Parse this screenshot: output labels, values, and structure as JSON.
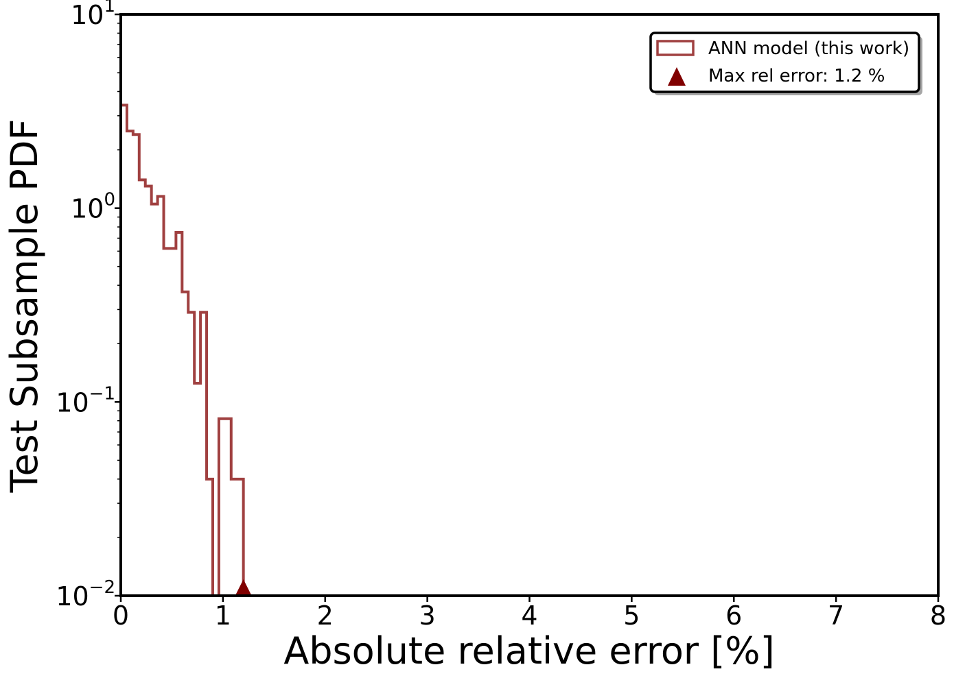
{
  "chart_data": {
    "type": "histogram",
    "xlabel": "Absolute relative error [%]",
    "ylabel": "Test Subsample PDF",
    "xlim": [
      0,
      8
    ],
    "ylim": [
      0.01,
      10
    ],
    "yscale": "log",
    "x_ticks": [
      0,
      1,
      2,
      3,
      4,
      5,
      6,
      7,
      8
    ],
    "x_tick_labels": [
      "0",
      "1",
      "2",
      "3",
      "4",
      "5",
      "6",
      "7",
      "8"
    ],
    "y_ticks": [
      {
        "value": 0.01,
        "base": "10",
        "exp": "−2"
      },
      {
        "value": 0.1,
        "base": "10",
        "exp": "−1"
      },
      {
        "value": 1,
        "base": "10",
        "exp": "0"
      },
      {
        "value": 10,
        "base": "10",
        "exp": "1"
      }
    ],
    "grid": false,
    "legend_position": "top-right",
    "series": [
      {
        "name": "ANN model (this work)",
        "color": "#a04040",
        "style": "step",
        "bin_edges": [
          0,
          0.06,
          0.12,
          0.18,
          0.24,
          0.3,
          0.36,
          0.42,
          0.48,
          0.54,
          0.6,
          0.66,
          0.72,
          0.78,
          0.84,
          0.9,
          0.96,
          1.02,
          1.08,
          1.14,
          1.2
        ],
        "values": [
          3.4,
          2.5,
          2.4,
          1.4,
          1.3,
          1.05,
          1.15,
          0.62,
          0.62,
          0.75,
          0.37,
          0.29,
          0.125,
          0.29,
          0.04,
          0,
          0.082,
          0.082,
          0.04,
          0.04
        ]
      }
    ],
    "marker": {
      "name": "Max rel error: 1.2 %",
      "x": 1.2,
      "y": 0.01,
      "shape": "triangle",
      "color": "#800000"
    }
  }
}
